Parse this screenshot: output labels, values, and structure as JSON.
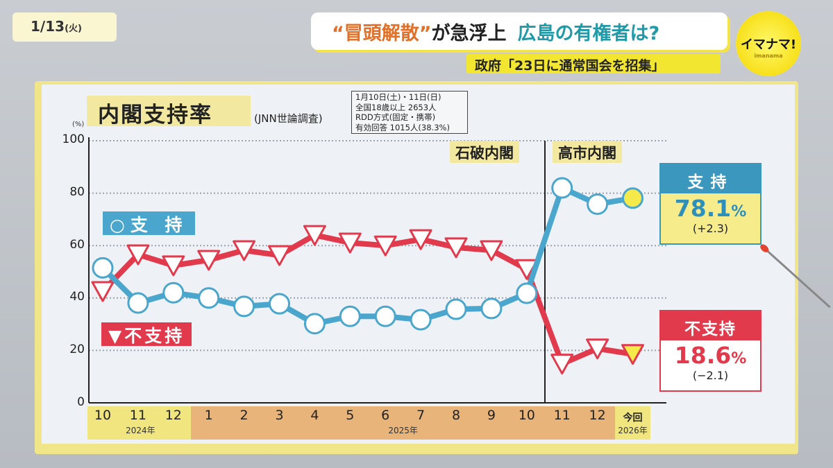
{
  "header": {
    "date": "1/13",
    "weekday": "(火)",
    "title_quote": "“冒頭解散”",
    "title_main": "が急浮上",
    "title_sub": "広島の有権者は?",
    "subheading": "政府「23日に通常国会を招集」",
    "logo": "イマナマ!",
    "logo_sub": "imanama"
  },
  "chart_data": {
    "type": "line",
    "title": "内閣支持率",
    "source": "(JNN世論調査)",
    "survey_info": [
      "1月10日(土)・11日(日)",
      "全国18歳以上 2653人",
      "RDD方式(固定・携帯)",
      "有効回答 1015人(38.3%)"
    ],
    "ylabel": "(%)",
    "ylim": [
      0,
      100
    ],
    "yticks": [
      "0",
      "20",
      "40",
      "60",
      "80",
      "100"
    ],
    "categories": [
      "10",
      "11",
      "12",
      "1",
      "2",
      "3",
      "4",
      "5",
      "6",
      "7",
      "8",
      "9",
      "10",
      "11",
      "12",
      "今回"
    ],
    "year_groups": [
      {
        "label": "2024年",
        "count": 3,
        "color": "#f0e57e"
      },
      {
        "label": "2025年",
        "count": 12,
        "color": "#e9b47a"
      },
      {
        "label": "2026年",
        "count": 1,
        "color": "#f0e57e"
      }
    ],
    "eras": [
      {
        "label": "石破内閣"
      },
      {
        "label": "高市内閣"
      }
    ],
    "series": [
      {
        "name": "支持",
        "legend": "○支 持",
        "marker": "circle",
        "color": "#4aa6cc",
        "values": [
          51.5,
          38.1,
          42,
          40,
          36.8,
          37.8,
          30.2,
          33,
          33,
          31.7,
          35.7,
          36,
          41.8,
          82.0,
          75.8,
          78.1
        ]
      },
      {
        "name": "不支持",
        "legend": "▼不支持",
        "marker": "triangle-down",
        "color": "#e23a4d",
        "values": [
          42.6,
          56.6,
          52.4,
          54.5,
          58.2,
          56.3,
          64,
          61.1,
          60,
          62.4,
          59.3,
          58.2,
          51,
          14.9,
          20.7,
          18.6
        ]
      }
    ],
    "grid": true
  },
  "callouts": {
    "support": {
      "label": "支持",
      "value": "78.1",
      "unit": "%",
      "change": "(+2.3)"
    },
    "nonsupport": {
      "label": "不支持",
      "value": "18.6",
      "unit": "%",
      "change": "(−2.1)"
    }
  }
}
